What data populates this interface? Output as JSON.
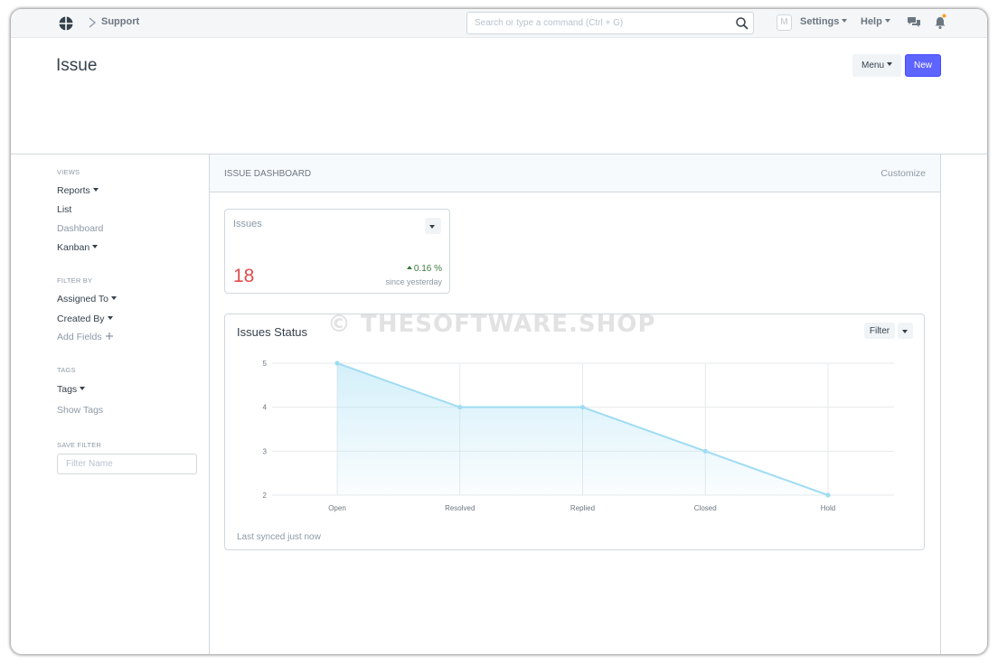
{
  "navbar": {
    "breadcrumb": "Support",
    "search_placeholder": "Search or type a command (Ctrl + G)",
    "avatar_initial": "M",
    "settings_label": "Settings",
    "help_label": "Help"
  },
  "page": {
    "title": "Issue",
    "menu_label": "Menu",
    "new_label": "New"
  },
  "sidebar": {
    "views_heading": "VIEWS",
    "views": [
      "Reports",
      "List",
      "Dashboard",
      "Kanban"
    ],
    "filter_heading": "FILTER BY",
    "filters": [
      "Assigned To",
      "Created By"
    ],
    "add_fields": "Add Fields",
    "tags_heading": "TAGS",
    "tags_label": "Tags",
    "show_tags": "Show Tags",
    "save_filter_heading": "SAVE FILTER",
    "filter_name_placeholder": "Filter Name"
  },
  "dashboard": {
    "title": "ISSUE DASHBOARD",
    "customize_label": "Customize",
    "card": {
      "title": "Issues",
      "value": "18",
      "change": "0.16 %",
      "since": "since yesterday"
    },
    "chart_card": {
      "title": "Issues Status",
      "filter_label": "Filter",
      "synced": "Last synced just now"
    }
  },
  "watermark": "© THESOFTWARE.SHOP",
  "colors": {
    "primary": "#5e64ff",
    "count_red": "#e24c4c",
    "change_green": "#3f7a3f",
    "line": "#9fdcf3"
  },
  "chart_data": {
    "type": "area",
    "categories": [
      "Open",
      "Resolved",
      "Replied",
      "Closed",
      "Hold"
    ],
    "values": [
      5,
      4,
      4,
      3,
      2
    ],
    "yticks": [
      2,
      3,
      4,
      5
    ],
    "ylim": [
      2,
      5
    ],
    "grid": true,
    "title": "",
    "xlabel": "",
    "ylabel": ""
  }
}
